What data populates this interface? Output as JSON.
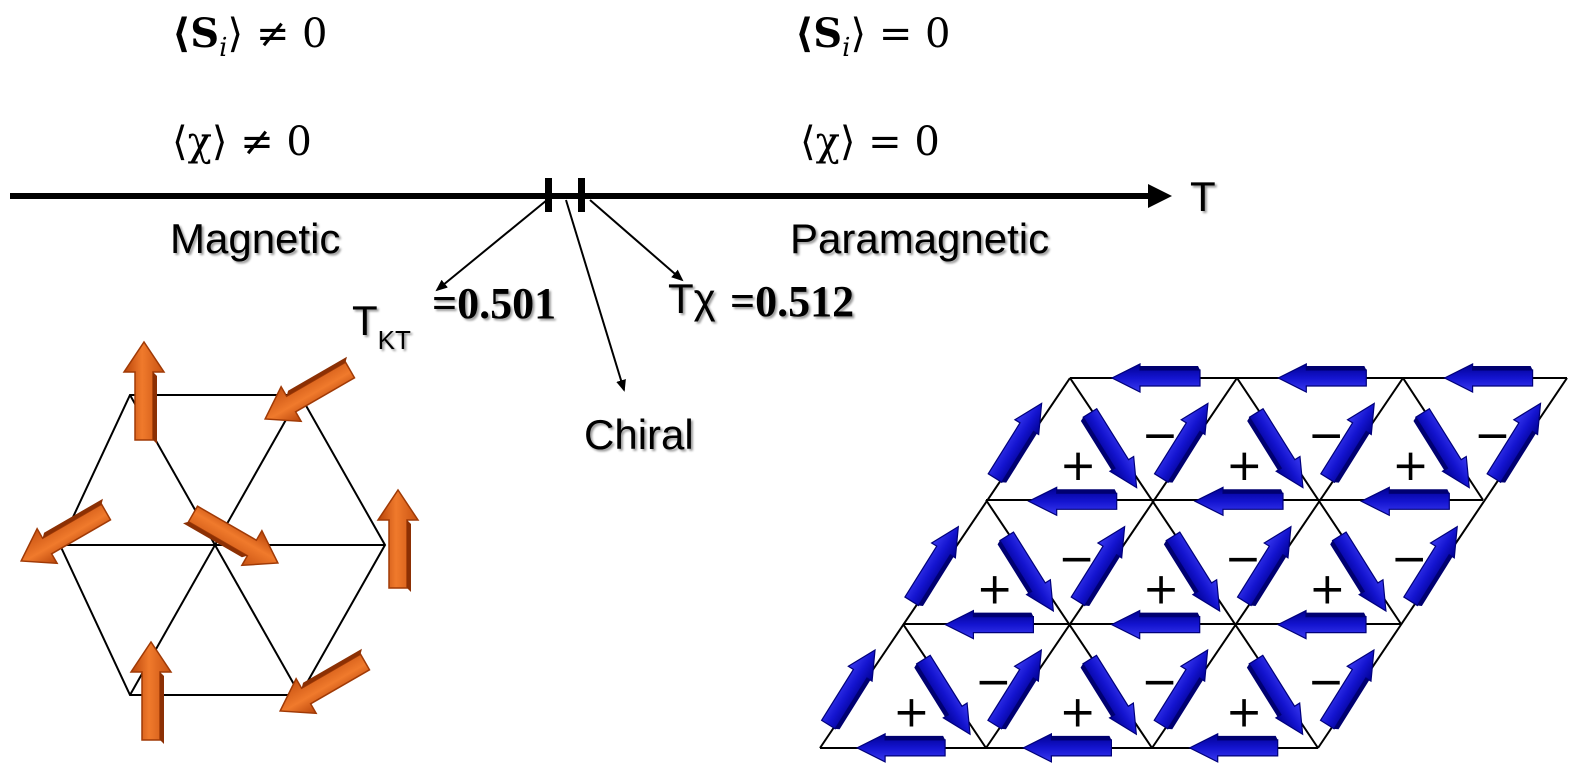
{
  "ordered": {
    "spin_expectation": "⟨S",
    "spin_subscript": "i",
    "spin_relation": "⟩ ≠ 0",
    "chirality_expectation": "⟨χ⟩ ≠ 0"
  },
  "disordered": {
    "spin_expectation": "⟨S",
    "spin_subscript": "i",
    "spin_relation": "⟩ = 0",
    "chirality_expectation": "⟨χ⟩ = 0"
  },
  "axis": {
    "label": "T"
  },
  "phases": {
    "low": "Magnetic",
    "high": "Paramagnetic",
    "middle": "Chiral"
  },
  "transitions": {
    "kt": {
      "symbol": "T",
      "subscript": "KT",
      "value": "=0.501"
    },
    "chiral": {
      "symbol": "Tχ",
      "value": "=0.512"
    }
  },
  "lattice_signs": {
    "up": "+",
    "down": "−"
  },
  "colors": {
    "orange_arrow": "#E8671C",
    "blue_arrow": "#1010D8",
    "line": "#000000"
  }
}
